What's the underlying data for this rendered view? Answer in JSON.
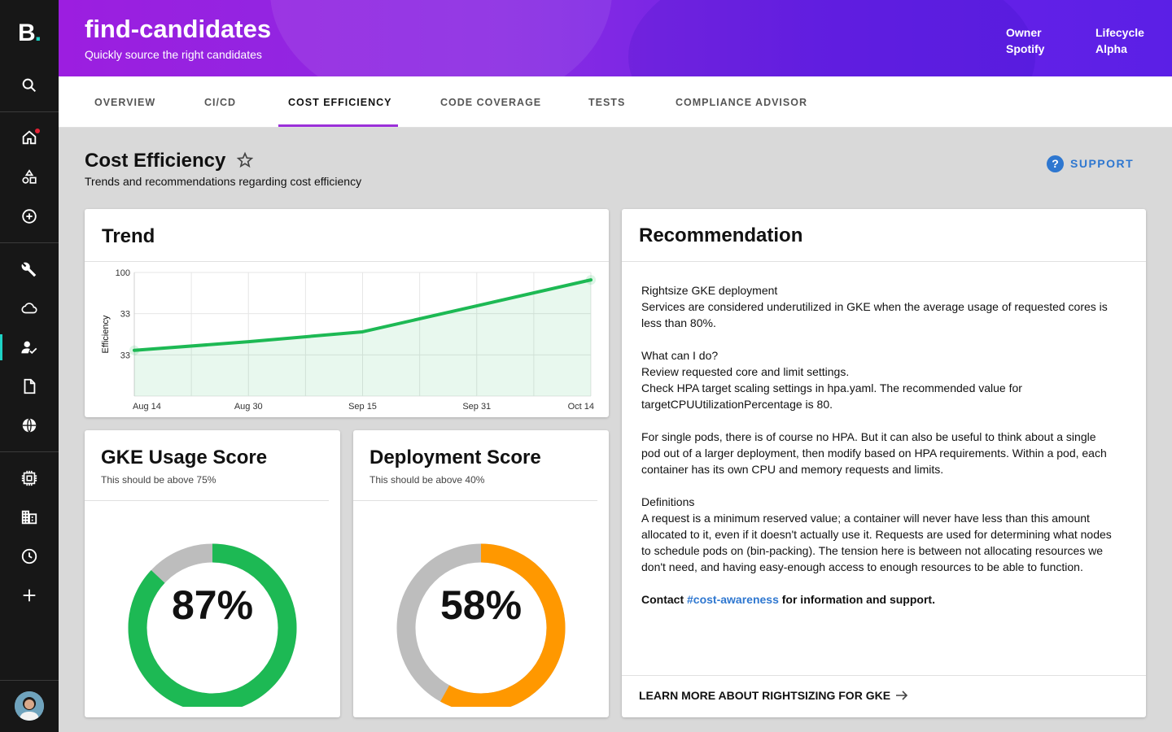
{
  "sidebar": {
    "logo": "B",
    "logo_dot": ".",
    "items": [
      {
        "name": "search-icon"
      },
      {
        "name": "home-icon"
      },
      {
        "name": "shapes-icon"
      },
      {
        "name": "add-circle-icon"
      },
      {
        "name": "wrench-icon"
      },
      {
        "name": "cloud-icon"
      },
      {
        "name": "user-check-icon"
      },
      {
        "name": "document-icon"
      },
      {
        "name": "globe-icon"
      },
      {
        "name": "chip-icon"
      },
      {
        "name": "building-icon"
      },
      {
        "name": "clock-icon"
      },
      {
        "name": "plus-icon"
      }
    ],
    "accent": "#1ed3c6"
  },
  "header": {
    "title": "find-candidates",
    "subtitle": "Quickly source the right candidates",
    "owner_label": "Owner",
    "owner_value": "Spotify",
    "lifecycle_label": "Lifecycle",
    "lifecycle_value": "Alpha"
  },
  "tabs": [
    {
      "label": "OVERVIEW"
    },
    {
      "label": "CI/CD"
    },
    {
      "label": "COST EFFICIENCY"
    },
    {
      "label": "CODE COVERAGE"
    },
    {
      "label": "TESTS"
    },
    {
      "label": "COMPLIANCE ADVISOR"
    }
  ],
  "page": {
    "title": "Cost Efficiency",
    "subtitle": "Trends and recommendations regarding cost efficiency",
    "support_label": "SUPPORT",
    "support_icon": "?"
  },
  "trend": {
    "title": "Trend",
    "chart_data": {
      "type": "line",
      "title": "Trend",
      "xlabel": "",
      "ylabel": "Efficiency",
      "x": [
        "Aug 14",
        "Aug 30",
        "Sep 15",
        "Sep 31",
        "Oct 14"
      ],
      "ytick_labels": [
        "100",
        "33",
        "33"
      ],
      "series": [
        {
          "name": "Efficiency",
          "color": "#1db954",
          "values": [
            37,
            44,
            52,
            73,
            94
          ]
        }
      ],
      "ylim": [
        0,
        100
      ],
      "grid": true
    }
  },
  "gke": {
    "title": "GKE Usage Score",
    "subtitle": "This should be above 75%",
    "value_label": "87%",
    "value": 87,
    "color": "#1db954"
  },
  "deployment": {
    "title": "Deployment Score",
    "subtitle": "This should be above 40%",
    "value_label": "58%",
    "value": 58,
    "color": "#ff9800"
  },
  "recommendation": {
    "title": "Recommendation",
    "p1_title": "Rightsize GKE deployment",
    "p1_text": "Services are considered underutilized in GKE when the average usage of requested cores is less than 80%.",
    "p2_title": "What can I do?",
    "p2_line1": "Review requested core and limit settings.",
    "p2_line2": "Check HPA target scaling settings in hpa.yaml. The recommended value for targetCPUUtilizationPercentage is 80.",
    "p3_text": "For single pods, there is of course no HPA. But it can also be useful to think about a single pod out of a larger deployment, then modify based on HPA requirements. Within a pod, each container has its own CPU and memory requests and limits.",
    "p4_title": "Definitions",
    "p4_text": "A request is a minimum reserved value; a container will never have less than this amount allocated to it, even if it doesn't actually use it. Requests are used for determining what nodes to schedule pods on (bin-packing). The tension here is between not allocating resources we don't need, and having easy-enough access to enough resources to be able to function.",
    "contact_prefix": "Contact",
    "contact_link": "#cost-awareness",
    "contact_suffix": "for information and support.",
    "learn_more": "LEARN MORE ABOUT RIGHTSIZING FOR GKE"
  }
}
